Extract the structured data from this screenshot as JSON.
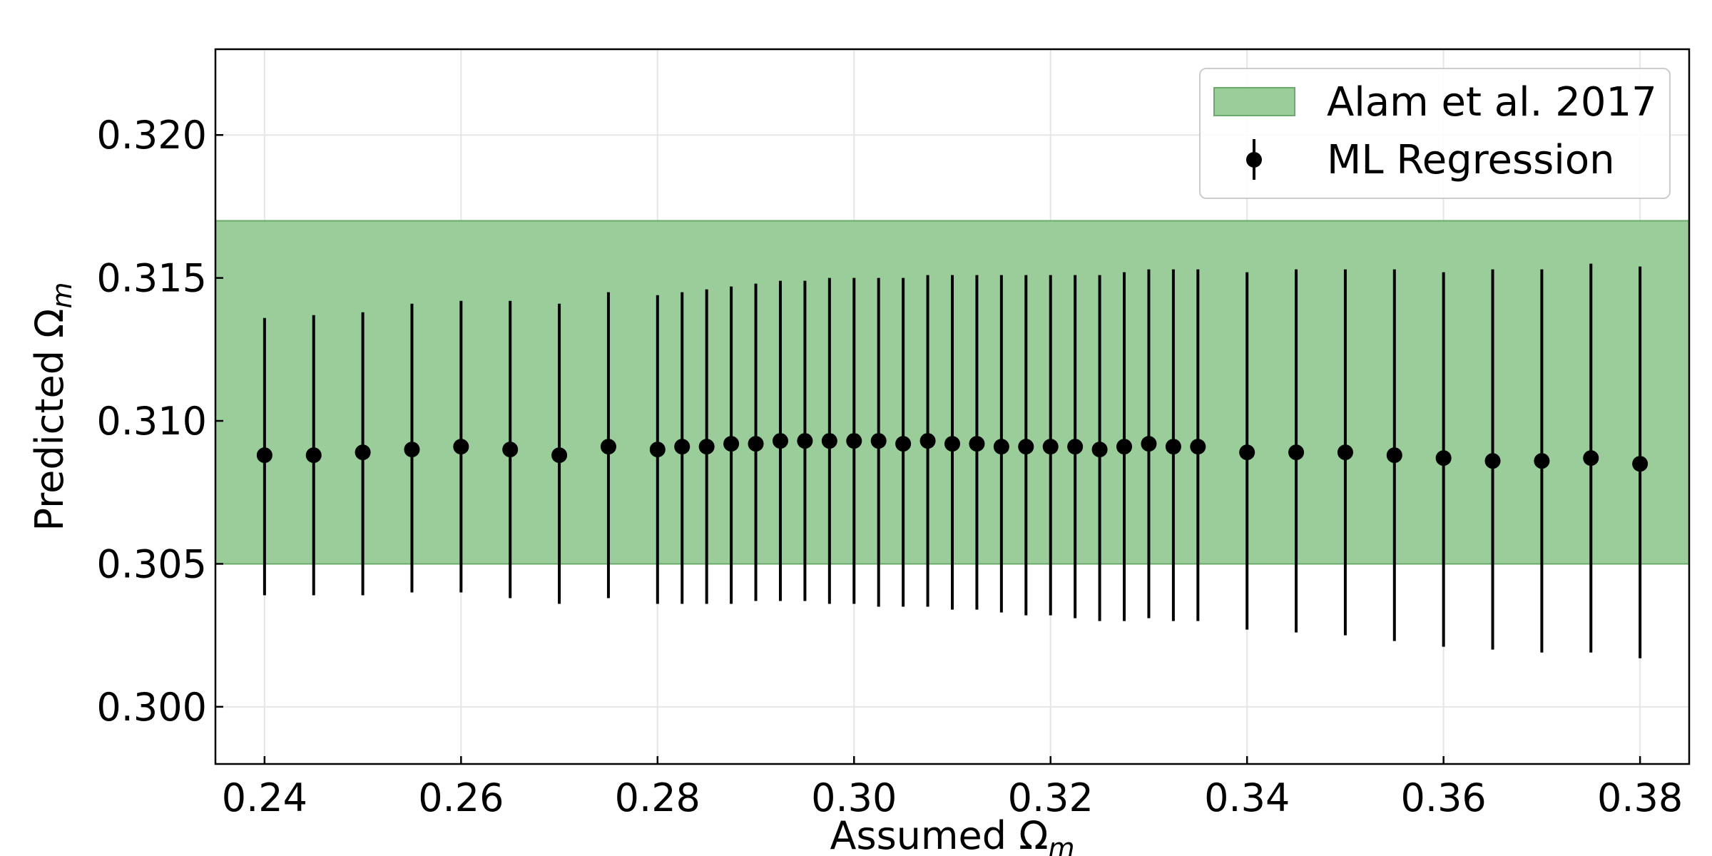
{
  "chart_data": {
    "type": "scatter",
    "xlabel": "Assumed Ω",
    "xlabel_sub": "m",
    "ylabel": "Predicted Ω",
    "ylabel_sub": "m",
    "xlim": [
      0.235,
      0.385
    ],
    "ylim": [
      0.298,
      0.323
    ],
    "x_ticks": [
      0.24,
      0.26,
      0.28,
      0.3,
      0.32,
      0.34,
      0.36,
      0.38
    ],
    "x_tick_labels": [
      "0.24",
      "0.26",
      "0.28",
      "0.30",
      "0.32",
      "0.34",
      "0.36",
      "0.38"
    ],
    "y_ticks": [
      0.3,
      0.305,
      0.31,
      0.315,
      0.32
    ],
    "y_tick_labels": [
      "0.300",
      "0.305",
      "0.310",
      "0.315",
      "0.320"
    ],
    "grid": true,
    "legend_position": "top-right",
    "band": {
      "name": "Alam et al. 2017",
      "y_low": 0.305,
      "y_high": 0.317,
      "color": "#9acd9a",
      "edge_color": "#6aaa6a"
    },
    "series": [
      {
        "name": "ML Regression",
        "color": "#000000",
        "x": [
          0.24,
          0.245,
          0.25,
          0.255,
          0.26,
          0.265,
          0.27,
          0.275,
          0.28,
          0.2825,
          0.285,
          0.2875,
          0.29,
          0.2925,
          0.295,
          0.2975,
          0.3,
          0.3025,
          0.305,
          0.3075,
          0.31,
          0.3125,
          0.315,
          0.3175,
          0.32,
          0.3225,
          0.325,
          0.3275,
          0.33,
          0.3325,
          0.335,
          0.34,
          0.345,
          0.35,
          0.355,
          0.36,
          0.365,
          0.37,
          0.375,
          0.38
        ],
        "y": [
          0.3088,
          0.3088,
          0.3089,
          0.309,
          0.3091,
          0.309,
          0.3088,
          0.3091,
          0.309,
          0.3091,
          0.3091,
          0.3092,
          0.3092,
          0.3093,
          0.3093,
          0.3093,
          0.3093,
          0.3093,
          0.3092,
          0.3093,
          0.3092,
          0.3092,
          0.3091,
          0.3091,
          0.3091,
          0.3091,
          0.309,
          0.3091,
          0.3092,
          0.3091,
          0.3091,
          0.3089,
          0.3089,
          0.3089,
          0.3088,
          0.3087,
          0.3086,
          0.3086,
          0.3087,
          0.3085
        ],
        "y_low": [
          0.3039,
          0.3039,
          0.3039,
          0.304,
          0.304,
          0.3038,
          0.3036,
          0.3038,
          0.3036,
          0.3036,
          0.3036,
          0.3036,
          0.3037,
          0.3037,
          0.3037,
          0.3036,
          0.3036,
          0.3035,
          0.3035,
          0.3035,
          0.3034,
          0.3034,
          0.3033,
          0.3032,
          0.3032,
          0.3031,
          0.303,
          0.303,
          0.3031,
          0.303,
          0.303,
          0.3027,
          0.3026,
          0.3025,
          0.3023,
          0.3021,
          0.302,
          0.3019,
          0.3019,
          0.3017
        ],
        "y_high": [
          0.3136,
          0.3137,
          0.3138,
          0.3141,
          0.3142,
          0.3142,
          0.3141,
          0.3145,
          0.3144,
          0.3145,
          0.3146,
          0.3147,
          0.3148,
          0.3149,
          0.3149,
          0.315,
          0.315,
          0.315,
          0.315,
          0.3151,
          0.3151,
          0.3151,
          0.3151,
          0.3151,
          0.3151,
          0.3151,
          0.3151,
          0.3152,
          0.3153,
          0.3153,
          0.3153,
          0.3152,
          0.3153,
          0.3153,
          0.3153,
          0.3152,
          0.3153,
          0.3153,
          0.3155,
          0.3154
        ]
      }
    ]
  }
}
